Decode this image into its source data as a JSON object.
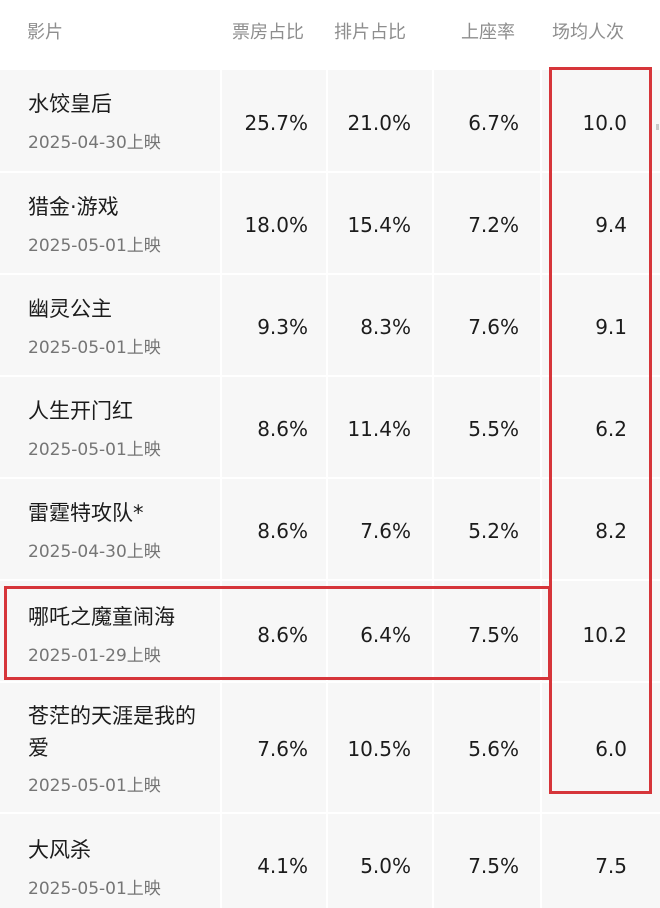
{
  "header": {
    "film": "影片",
    "box_office_share": "票房占比",
    "screening_share": "排片占比",
    "occupancy_rate": "上座率",
    "avg_per_screening": "场均人次"
  },
  "rows": [
    {
      "title": "水饺皇后",
      "title_line2": "",
      "date": "2025-04-30上映",
      "box_office_share": "25.7%",
      "screening_share": "21.0%",
      "occupancy_rate": "6.7%",
      "avg_per_screening": "10.0"
    },
    {
      "title": "猎金·游戏",
      "title_line2": "",
      "date": "2025-05-01上映",
      "box_office_share": "18.0%",
      "screening_share": "15.4%",
      "occupancy_rate": "7.2%",
      "avg_per_screening": "9.4"
    },
    {
      "title": "幽灵公主",
      "title_line2": "",
      "date": "2025-05-01上映",
      "box_office_share": "9.3%",
      "screening_share": "8.3%",
      "occupancy_rate": "7.6%",
      "avg_per_screening": "9.1"
    },
    {
      "title": "人生开门红",
      "title_line2": "",
      "date": "2025-05-01上映",
      "box_office_share": "8.6%",
      "screening_share": "11.4%",
      "occupancy_rate": "5.5%",
      "avg_per_screening": "6.2"
    },
    {
      "title": "雷霆特攻队*",
      "title_line2": "",
      "date": "2025-04-30上映",
      "box_office_share": "8.6%",
      "screening_share": "7.6%",
      "occupancy_rate": "5.2%",
      "avg_per_screening": "8.2"
    },
    {
      "title": "哪吒之魔童闹海",
      "title_line2": "",
      "date": "2025-01-29上映",
      "box_office_share": "8.6%",
      "screening_share": "6.4%",
      "occupancy_rate": "7.5%",
      "avg_per_screening": "10.2"
    },
    {
      "title": "苍茫的天涯是我的",
      "title_line2": "爱",
      "date": "2025-05-01上映",
      "box_office_share": "7.6%",
      "screening_share": "10.5%",
      "occupancy_rate": "5.6%",
      "avg_per_screening": "6.0"
    },
    {
      "title": "大风杀",
      "title_line2": "",
      "date": "2025-05-01上映",
      "box_office_share": "4.1%",
      "screening_share": "5.0%",
      "occupancy_rate": "7.5%",
      "avg_per_screening": "7.5"
    }
  ],
  "colors": {
    "highlight": "#d6353a",
    "column_background": "#f7f7f7",
    "header_text": "#8e8e8e"
  }
}
